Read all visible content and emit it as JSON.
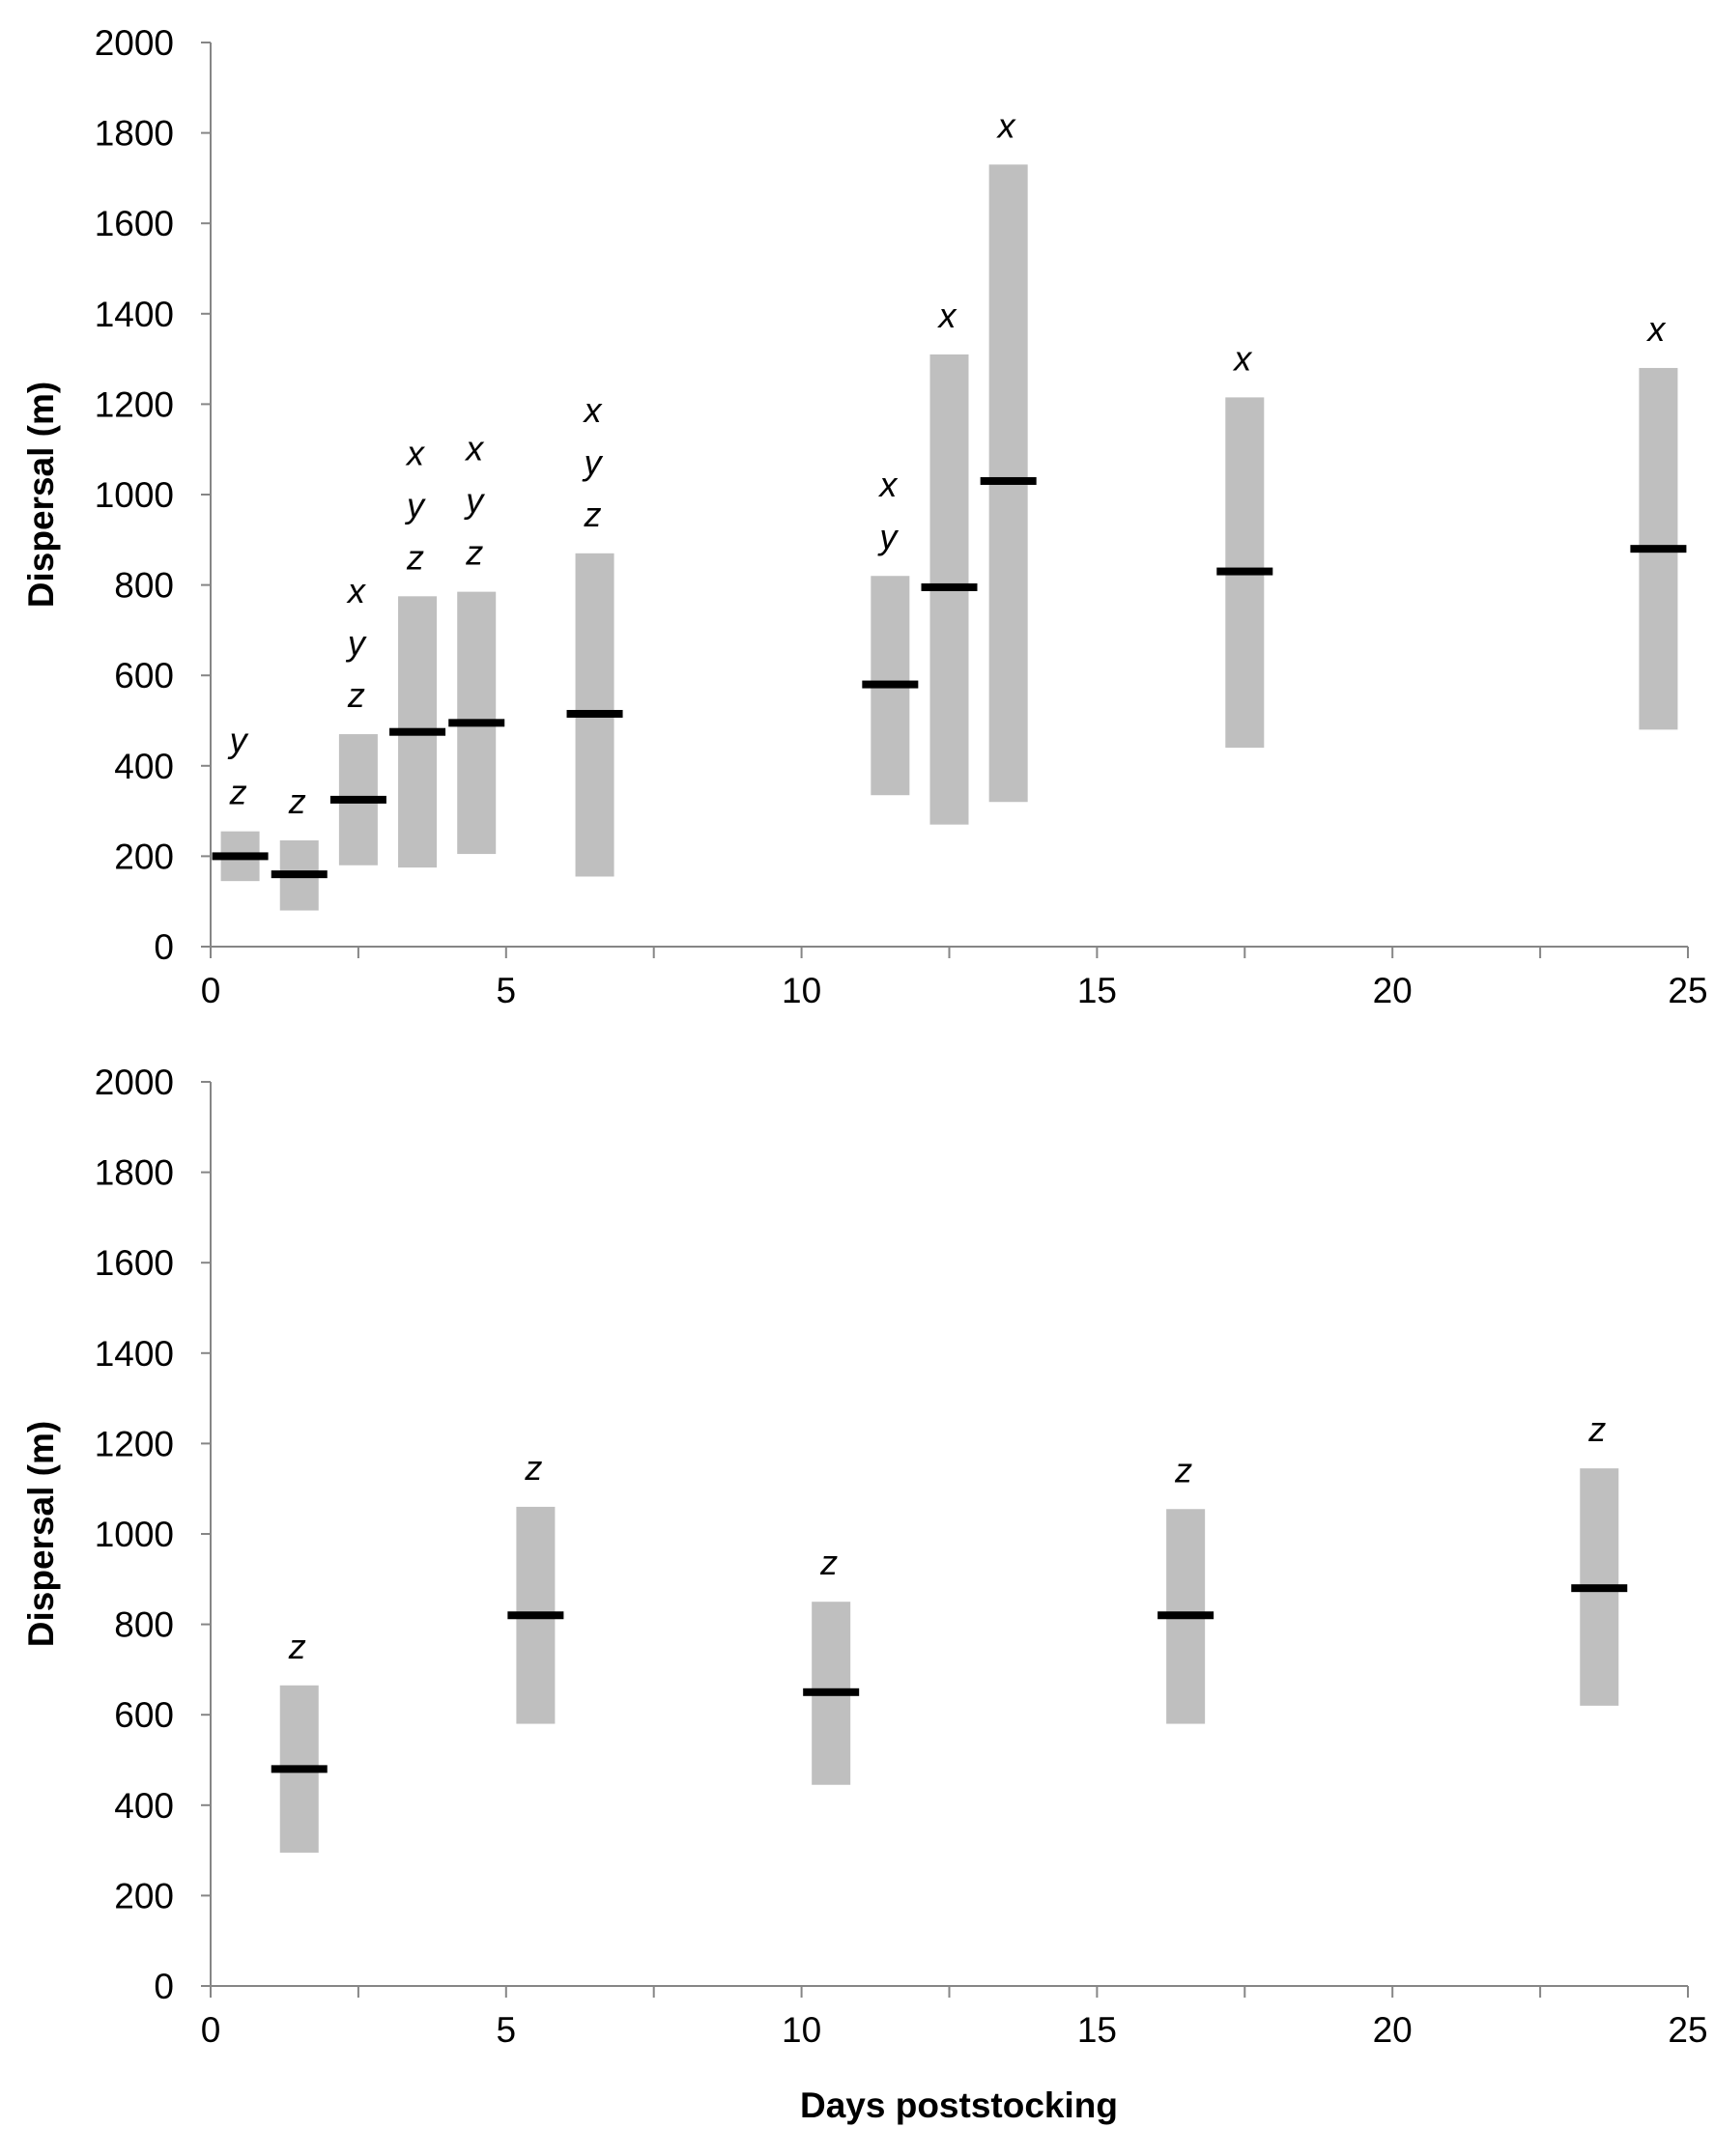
{
  "chart_data": [
    {
      "type": "range-bar",
      "panel": "top",
      "title": "",
      "xlabel": "",
      "ylabel": "Dispersal (m)",
      "xlim": [
        0,
        25
      ],
      "ylim": [
        0,
        2000
      ],
      "x_ticks": [
        0,
        5,
        10,
        15,
        20,
        25
      ],
      "x_tick_labels": [
        "0",
        "5",
        "10",
        "15",
        "20",
        "25"
      ],
      "y_ticks": [
        0,
        200,
        400,
        600,
        800,
        1000,
        1200,
        1400,
        1600,
        1800,
        2000
      ],
      "y_tick_labels": [
        "0",
        "200",
        "400",
        "600",
        "800",
        "1000",
        "1200",
        "1400",
        "1600",
        "1800",
        "2000"
      ],
      "grid": false,
      "bar_color": "#bfbfbf",
      "median_color": "#000000",
      "points": [
        {
          "x": 0.5,
          "low": 145,
          "high": 255,
          "median": 200,
          "letters": [
            "y",
            "z"
          ]
        },
        {
          "x": 1.5,
          "low": 80,
          "high": 235,
          "median": 160,
          "letters": [
            "z"
          ]
        },
        {
          "x": 2.5,
          "low": 180,
          "high": 470,
          "median": 325,
          "letters": [
            "x",
            "y",
            "z"
          ]
        },
        {
          "x": 3.5,
          "low": 175,
          "high": 775,
          "median": 475,
          "letters": [
            "x",
            "y",
            "z"
          ]
        },
        {
          "x": 4.5,
          "low": 205,
          "high": 785,
          "median": 495,
          "letters": [
            "x",
            "y",
            "z"
          ]
        },
        {
          "x": 6.5,
          "low": 155,
          "high": 870,
          "median": 515,
          "letters": [
            "x",
            "y",
            "z"
          ]
        },
        {
          "x": 11.5,
          "low": 335,
          "high": 820,
          "median": 580,
          "letters": [
            "x",
            "y"
          ]
        },
        {
          "x": 12.5,
          "low": 270,
          "high": 1310,
          "median": 795,
          "letters": [
            "x"
          ]
        },
        {
          "x": 13.5,
          "low": 320,
          "high": 1730,
          "median": 1030,
          "letters": [
            "x"
          ]
        },
        {
          "x": 17.5,
          "low": 440,
          "high": 1215,
          "median": 830,
          "letters": [
            "x"
          ]
        },
        {
          "x": 24.5,
          "low": 480,
          "high": 1280,
          "median": 880,
          "letters": [
            "x"
          ]
        }
      ]
    },
    {
      "type": "range-bar",
      "panel": "bottom",
      "title": "",
      "xlabel": "Days poststocking",
      "ylabel": "Dispersal (m)",
      "xlim": [
        0,
        25
      ],
      "ylim": [
        0,
        2000
      ],
      "x_ticks": [
        0,
        5,
        10,
        15,
        20,
        25
      ],
      "x_tick_labels": [
        "0",
        "5",
        "10",
        "15",
        "20",
        "25"
      ],
      "y_ticks": [
        0,
        200,
        400,
        600,
        800,
        1000,
        1200,
        1400,
        1600,
        1800,
        2000
      ],
      "y_tick_labels": [
        "0",
        "200",
        "400",
        "600",
        "800",
        "1000",
        "1200",
        "1400",
        "1600",
        "1800",
        "2000"
      ],
      "grid": false,
      "bar_color": "#bfbfbf",
      "median_color": "#000000",
      "points": [
        {
          "x": 1.5,
          "low": 295,
          "high": 665,
          "median": 480,
          "letters": [
            "z"
          ]
        },
        {
          "x": 5.5,
          "low": 580,
          "high": 1060,
          "median": 820,
          "letters": [
            "z"
          ]
        },
        {
          "x": 10.5,
          "low": 445,
          "high": 850,
          "median": 650,
          "letters": [
            "z"
          ]
        },
        {
          "x": 16.5,
          "low": 580,
          "high": 1055,
          "median": 820,
          "letters": [
            "z"
          ]
        },
        {
          "x": 23.5,
          "low": 620,
          "high": 1145,
          "median": 880,
          "letters": [
            "z"
          ]
        }
      ]
    }
  ]
}
